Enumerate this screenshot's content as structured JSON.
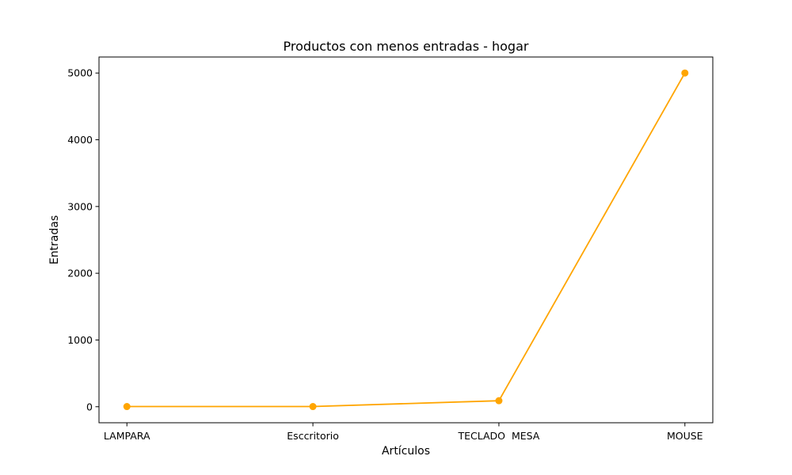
{
  "chart_data": {
    "type": "line",
    "title": "Productos con menos entradas - hogar",
    "xlabel": "Artículos",
    "ylabel": "Entradas",
    "categories": [
      "LAMPARA",
      "Esccritorio",
      "TECLADO  MESA",
      "MOUSE"
    ],
    "series": [
      {
        "values": [
          3,
          3,
          90,
          5000
        ],
        "color": "#ffa500"
      }
    ],
    "ylim": [
      -240,
      5240
    ],
    "yticks": [
      0,
      1000,
      2000,
      3000,
      4000,
      5000
    ],
    "grid": false
  }
}
